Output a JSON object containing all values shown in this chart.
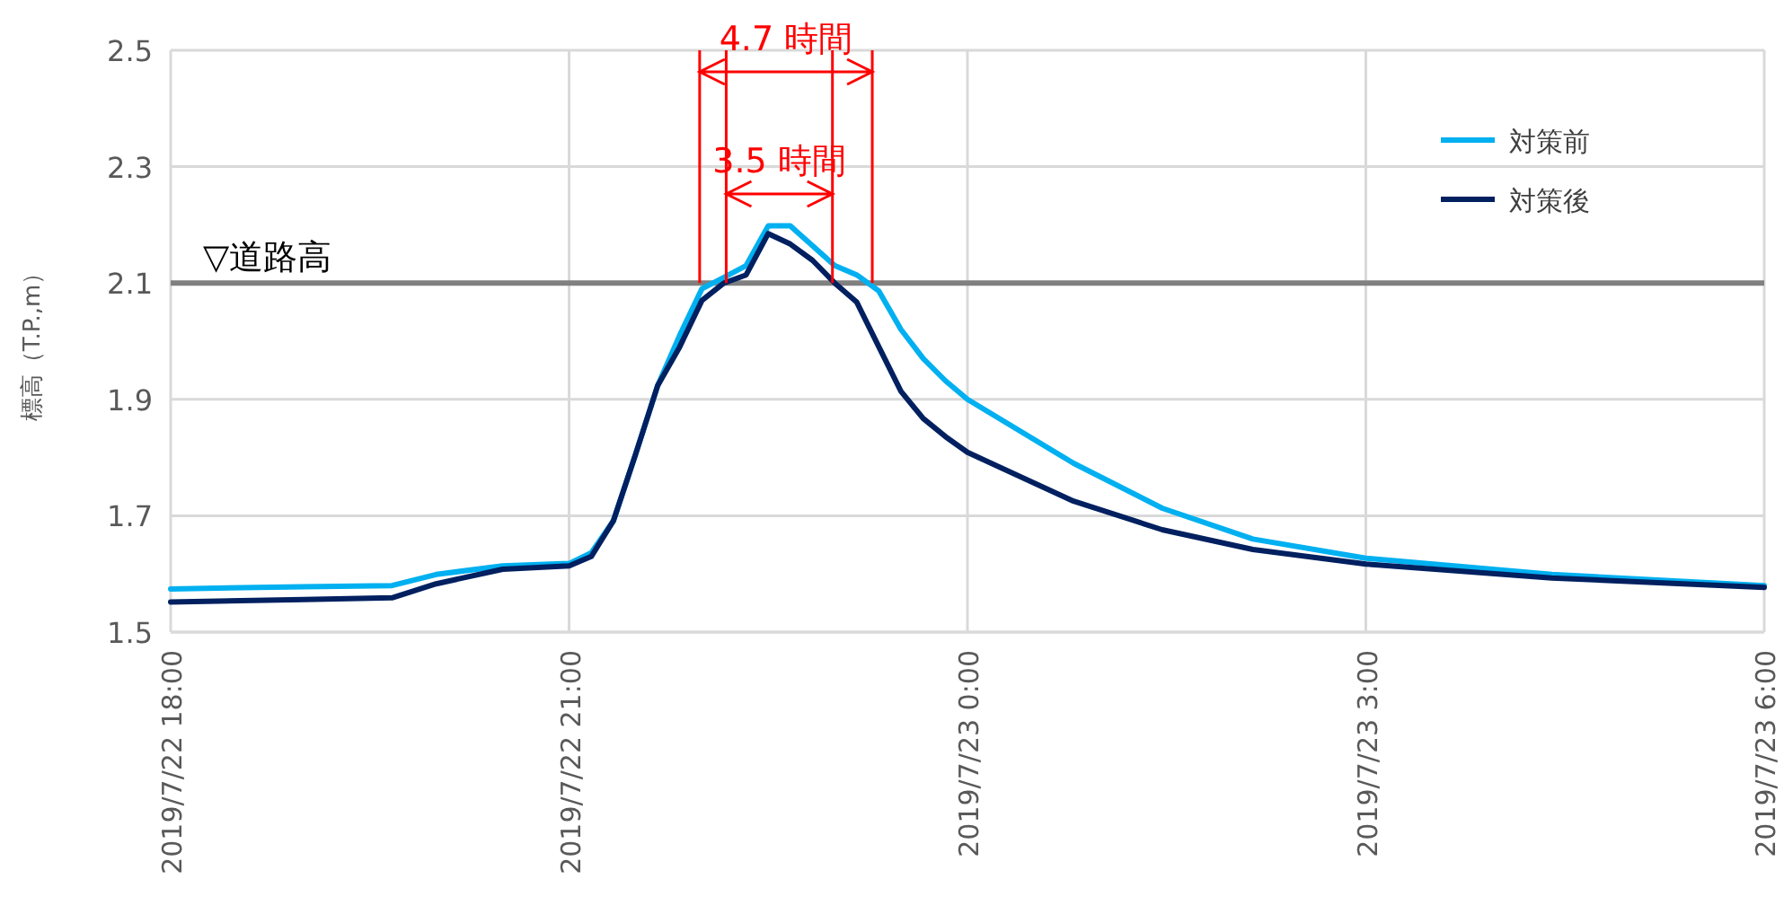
{
  "chart_data": {
    "type": "line",
    "ylabel": "標高（T.P.,m）",
    "xlim": [
      "2019-07-22T18:00",
      "2019-07-23T06:00"
    ],
    "xticks": [
      {
        "value": "2019-07-22T18:00",
        "label": "2019/7/22 18:00"
      },
      {
        "value": "2019-07-22T21:00",
        "label": "2019/7/22 21:00"
      },
      {
        "value": "2019-07-23T00:00",
        "label": "2019/7/23 0:00"
      },
      {
        "value": "2019-07-23T03:00",
        "label": "2019/7/23 3:00"
      },
      {
        "value": "2019-07-23T06:00",
        "label": "2019/7/23 6:00"
      }
    ],
    "ylim": [
      1.5,
      2.5
    ],
    "yticks": [
      1.5,
      1.7,
      1.9,
      2.1,
      2.3,
      2.5
    ],
    "grid": true,
    "legend": "top right",
    "marker": "none",
    "line_style": "solid",
    "series": [
      {
        "name": "対策前",
        "color": "#00b0f0",
        "x": [
          "2019-07-22T18:00",
          "2019-07-22T19:00",
          "2019-07-22T19:40",
          "2019-07-22T20:00",
          "2019-07-22T20:30",
          "2019-07-22T21:00",
          "2019-07-22T21:10",
          "2019-07-22T21:20",
          "2019-07-22T21:30",
          "2019-07-22T21:40",
          "2019-07-22T21:50",
          "2019-07-22T22:00",
          "2019-07-22T22:10",
          "2019-07-22T22:20",
          "2019-07-22T22:30",
          "2019-07-22T22:40",
          "2019-07-22T22:50",
          "2019-07-22T23:00",
          "2019-07-22T23:10",
          "2019-07-22T23:20",
          "2019-07-22T23:30",
          "2019-07-22T23:40",
          "2019-07-22T23:50",
          "2019-07-23T00:00",
          "2019-07-23T00:48",
          "2019-07-23T01:28",
          "2019-07-23T02:09",
          "2019-07-23T03:00",
          "2019-07-23T04:24",
          "2019-07-23T06:00"
        ],
        "values": [
          1.574,
          1.578,
          1.58,
          1.599,
          1.614,
          1.618,
          1.636,
          1.691,
          1.805,
          1.923,
          2.01,
          2.09,
          2.11,
          2.13,
          2.198,
          2.198,
          2.164,
          2.13,
          2.114,
          2.086,
          2.02,
          1.97,
          1.932,
          1.9,
          1.79,
          1.713,
          1.66,
          1.627,
          1.599,
          1.58
        ]
      },
      {
        "name": "対策後",
        "color": "#002060",
        "x": [
          "2019-07-22T18:00",
          "2019-07-22T19:00",
          "2019-07-22T19:40",
          "2019-07-22T20:00",
          "2019-07-22T20:30",
          "2019-07-22T21:00",
          "2019-07-22T21:10",
          "2019-07-22T21:20",
          "2019-07-22T21:30",
          "2019-07-22T21:40",
          "2019-07-22T21:50",
          "2019-07-22T22:00",
          "2019-07-22T22:10",
          "2019-07-22T22:20",
          "2019-07-22T22:30",
          "2019-07-22T22:40",
          "2019-07-22T22:50",
          "2019-07-22T23:00",
          "2019-07-22T23:10",
          "2019-07-22T23:20",
          "2019-07-22T23:30",
          "2019-07-22T23:40",
          "2019-07-22T23:50",
          "2019-07-23T00:00",
          "2019-07-23T00:48",
          "2019-07-23T01:28",
          "2019-07-23T02:09",
          "2019-07-23T03:00",
          "2019-07-23T04:24",
          "2019-07-23T06:00"
        ],
        "values": [
          1.552,
          1.556,
          1.559,
          1.583,
          1.608,
          1.614,
          1.63,
          1.691,
          1.805,
          1.923,
          1.99,
          2.07,
          2.1,
          2.114,
          2.185,
          2.167,
          2.139,
          2.1,
          2.067,
          1.99,
          1.914,
          1.867,
          1.836,
          1.809,
          1.725,
          1.676,
          1.642,
          1.617,
          1.593,
          1.577
        ]
      }
    ],
    "ref_lines": [
      {
        "axis": "y",
        "value": 2.1,
        "label": "▽道路高",
        "color": "#808080"
      },
      {
        "axis": "x",
        "value": "2019-07-22T21:59",
        "label": null,
        "color": "#ff0000"
      },
      {
        "axis": "x",
        "value": "2019-07-22T22:11",
        "label": null,
        "color": "#ff0000"
      },
      {
        "axis": "x",
        "value": "2019-07-22T22:59",
        "label": null,
        "color": "#ff0000"
      },
      {
        "axis": "x",
        "value": "2019-07-22T23:17",
        "label": null,
        "color": "#ff0000"
      }
    ],
    "annotations": [
      "4.7 時間",
      "3.5 時間"
    ]
  }
}
